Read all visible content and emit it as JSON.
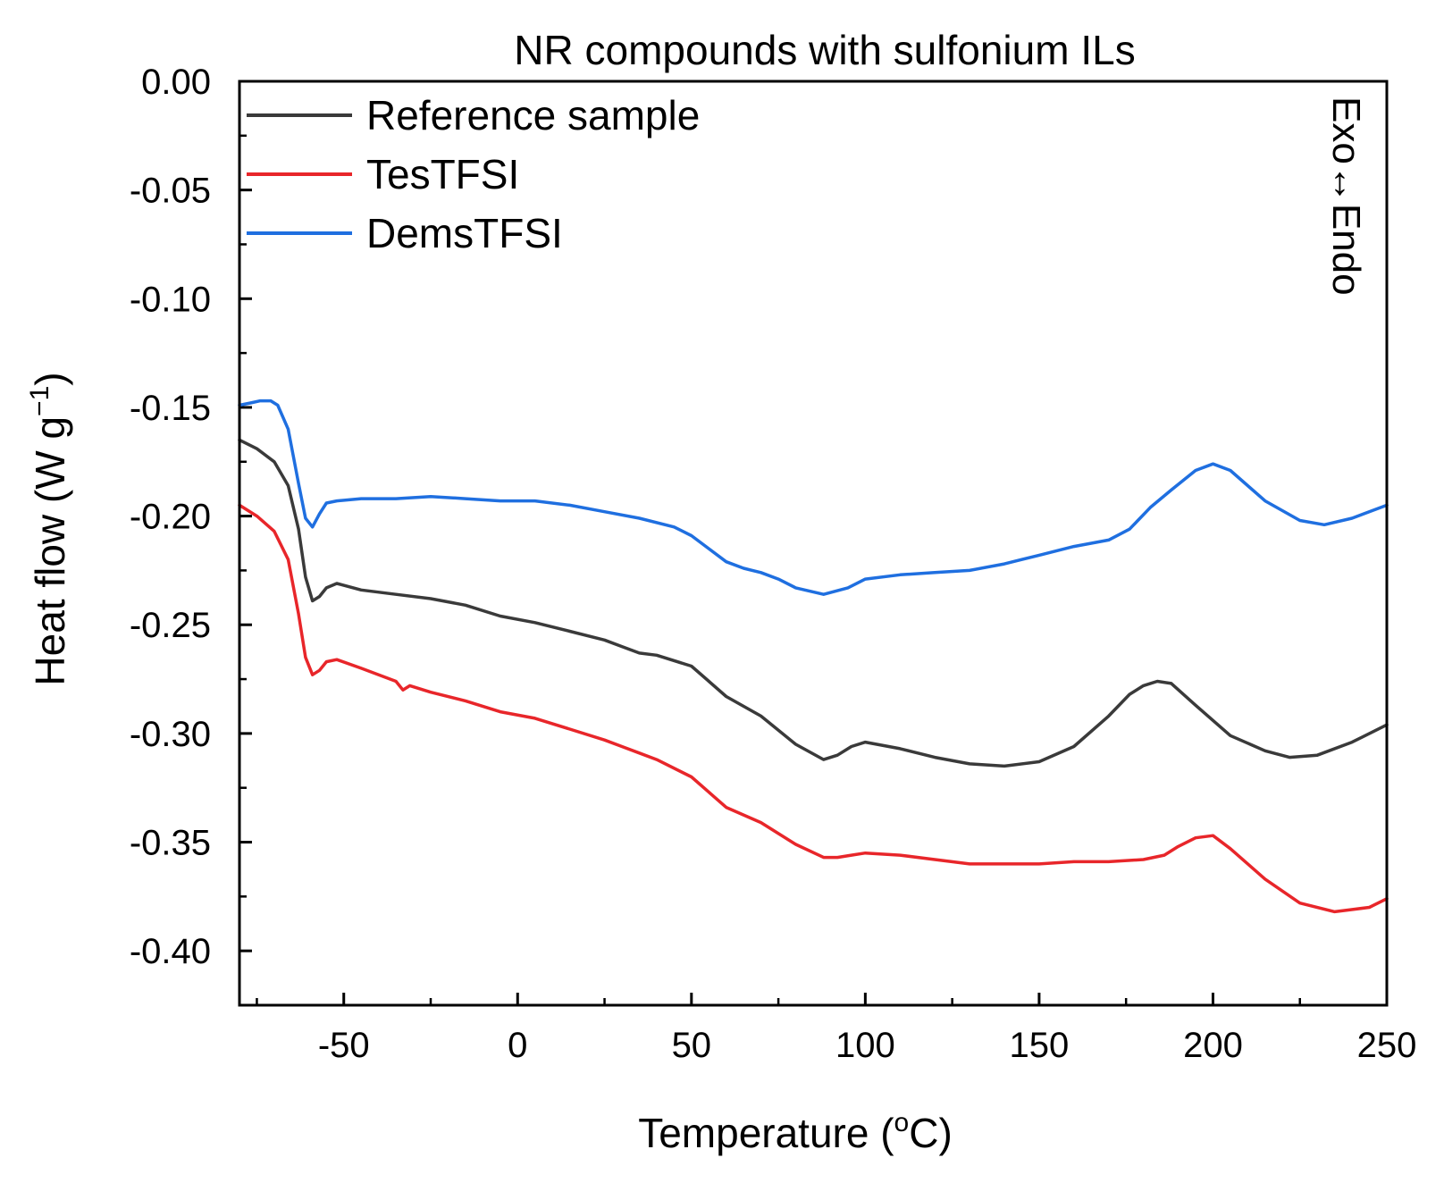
{
  "chart_data": {
    "type": "line",
    "title": "NR compounds with sulfonium ILs",
    "xlabel": "Temperature (",
    "xlabel_sup": "o",
    "xlabel_tail": "C)",
    "ylabel": "Heat flow (W g",
    "ylabel_sup": "−1",
    "ylabel_tail": ")",
    "annotation": "Exo↔Endo",
    "xlim": [
      -80,
      250
    ],
    "ylim": [
      -0.425,
      0.0
    ],
    "x_ticks": [
      -50,
      0,
      50,
      100,
      150,
      200,
      250
    ],
    "x_tick_labels": [
      "-50",
      "0",
      "50",
      "100",
      "150",
      "200",
      "250"
    ],
    "y_ticks": [
      0.0,
      -0.05,
      -0.1,
      -0.15,
      -0.2,
      -0.25,
      -0.3,
      -0.35,
      -0.4
    ],
    "y_tick_labels": [
      "0.00",
      "-0.05",
      "-0.10",
      "-0.15",
      "-0.20",
      "-0.25",
      "-0.30",
      "-0.35",
      "-0.40"
    ],
    "legend_position": "top-left",
    "series": [
      {
        "name": "Reference sample",
        "color": "#3a3a3a",
        "x": [
          -80,
          -75,
          -70,
          -66,
          -63,
          -61,
          -59,
          -57,
          -55,
          -52,
          -45,
          -35,
          -25,
          -15,
          -5,
          5,
          15,
          25,
          30,
          35,
          40,
          50,
          55,
          60,
          70,
          80,
          88,
          92,
          96,
          100,
          110,
          120,
          130,
          140,
          150,
          160,
          170,
          176,
          180,
          184,
          188,
          195,
          205,
          215,
          222,
          230,
          240,
          250
        ],
        "y": [
          -0.165,
          -0.169,
          -0.175,
          -0.186,
          -0.206,
          -0.228,
          -0.239,
          -0.237,
          -0.233,
          -0.231,
          -0.234,
          -0.236,
          -0.238,
          -0.241,
          -0.246,
          -0.249,
          -0.253,
          -0.257,
          -0.26,
          -0.263,
          -0.264,
          -0.269,
          -0.276,
          -0.283,
          -0.292,
          -0.305,
          -0.312,
          -0.31,
          -0.306,
          -0.304,
          -0.307,
          -0.311,
          -0.314,
          -0.315,
          -0.313,
          -0.306,
          -0.292,
          -0.282,
          -0.278,
          -0.276,
          -0.277,
          -0.287,
          -0.301,
          -0.308,
          -0.311,
          -0.31,
          -0.304,
          -0.296
        ]
      },
      {
        "name": "TesTFSI",
        "color": "#e8262a",
        "x": [
          -80,
          -75,
          -70,
          -66,
          -63,
          -61,
          -59,
          -57,
          -55,
          -52,
          -45,
          -35,
          -33,
          -31,
          -25,
          -15,
          -5,
          5,
          15,
          25,
          30,
          35,
          40,
          50,
          55,
          60,
          70,
          80,
          88,
          92,
          96,
          100,
          110,
          120,
          130,
          140,
          150,
          160,
          170,
          180,
          186,
          190,
          195,
          200,
          205,
          215,
          225,
          235,
          245,
          250
        ],
        "y": [
          -0.195,
          -0.2,
          -0.207,
          -0.22,
          -0.245,
          -0.265,
          -0.273,
          -0.271,
          -0.267,
          -0.266,
          -0.27,
          -0.276,
          -0.28,
          -0.278,
          -0.281,
          -0.285,
          -0.29,
          -0.293,
          -0.298,
          -0.303,
          -0.306,
          -0.309,
          -0.312,
          -0.32,
          -0.327,
          -0.334,
          -0.341,
          -0.351,
          -0.357,
          -0.357,
          -0.356,
          -0.355,
          -0.356,
          -0.358,
          -0.36,
          -0.36,
          -0.36,
          -0.359,
          -0.359,
          -0.358,
          -0.356,
          -0.352,
          -0.348,
          -0.347,
          -0.353,
          -0.367,
          -0.378,
          -0.382,
          -0.38,
          -0.376
        ]
      },
      {
        "name": "DemsTFSI",
        "color": "#1f6fe0",
        "x": [
          -80,
          -77,
          -74,
          -71,
          -69,
          -66,
          -63,
          -61,
          -59,
          -57,
          -55,
          -52,
          -45,
          -35,
          -25,
          -15,
          -5,
          5,
          15,
          25,
          35,
          45,
          50,
          55,
          60,
          65,
          70,
          75,
          80,
          88,
          95,
          100,
          110,
          120,
          130,
          140,
          150,
          160,
          170,
          176,
          182,
          188,
          195,
          200,
          205,
          215,
          225,
          232,
          240,
          250
        ],
        "y": [
          -0.149,
          -0.148,
          -0.147,
          -0.147,
          -0.149,
          -0.16,
          -0.185,
          -0.201,
          -0.205,
          -0.199,
          -0.194,
          -0.193,
          -0.192,
          -0.192,
          -0.191,
          -0.192,
          -0.193,
          -0.193,
          -0.195,
          -0.198,
          -0.201,
          -0.205,
          -0.209,
          -0.215,
          -0.221,
          -0.224,
          -0.226,
          -0.229,
          -0.233,
          -0.236,
          -0.233,
          -0.229,
          -0.227,
          -0.226,
          -0.225,
          -0.222,
          -0.218,
          -0.214,
          -0.211,
          -0.206,
          -0.196,
          -0.188,
          -0.179,
          -0.176,
          -0.179,
          -0.193,
          -0.202,
          -0.204,
          -0.201,
          -0.195
        ]
      }
    ]
  }
}
